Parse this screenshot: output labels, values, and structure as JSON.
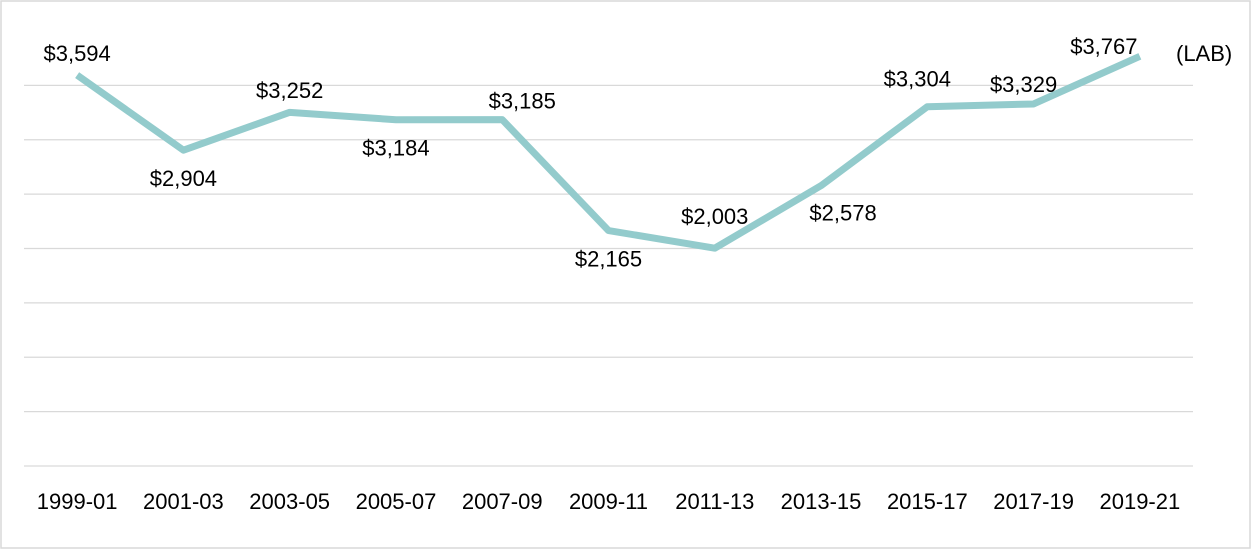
{
  "chart_data": {
    "type": "line",
    "categories": [
      "1999-01",
      "2001-03",
      "2003-05",
      "2005-07",
      "2007-09",
      "2009-11",
      "2011-13",
      "2013-15",
      "2015-17",
      "2017-19",
      "2019-21"
    ],
    "series": [
      {
        "name": null,
        "color": "#93cbcc",
        "values": [
          3594,
          2904,
          3252,
          3184,
          3185,
          2165,
          2003,
          2578,
          3304,
          3329,
          3767
        ],
        "value_labels": [
          "$3,594",
          "$2,904",
          "$3,252",
          "$3,184",
          "$3,185",
          "$2,165",
          "$2,003",
          "$2,578",
          "$3,304",
          "$3,329",
          "$3,767"
        ]
      }
    ],
    "annotations": [
      "(LAB)"
    ],
    "ylim": [
      0,
      4000
    ],
    "yticks": [
      0,
      500,
      1000,
      1500,
      2000,
      2500,
      3000,
      3500
    ],
    "grid": true
  }
}
